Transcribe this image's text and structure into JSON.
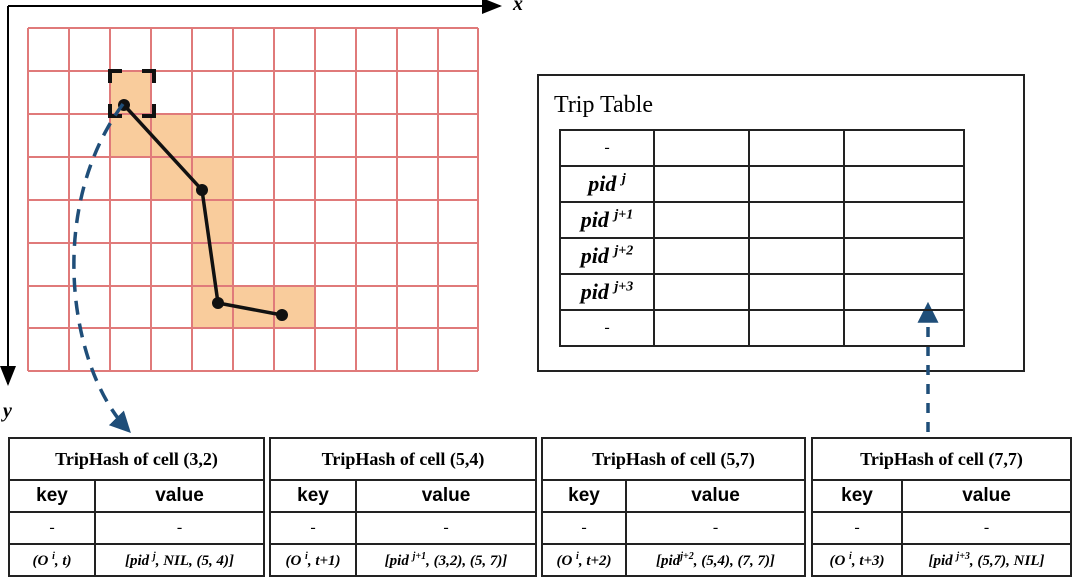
{
  "axes": {
    "x_label": "x",
    "y_label": "y"
  },
  "trip_table": {
    "title": "Trip Table",
    "first_row": "-",
    "rows": [
      {
        "pid": "pid",
        "sup": "j"
      },
      {
        "pid": "pid",
        "sup": "j+1"
      },
      {
        "pid": "pid",
        "sup": "j+2"
      },
      {
        "pid": "pid",
        "sup": "j+3"
      }
    ],
    "last_row": "-"
  },
  "hash_tables": [
    {
      "title": "TripHash of cell (3,2)",
      "key_header": "key",
      "value_header": "value",
      "dash": "-",
      "key_a": "(O",
      "key_sup": "i",
      "key_b": ", t)",
      "val_a": "[pid",
      "val_sup": "j",
      "val_b": ", NIL, (5, 4)]"
    },
    {
      "title": "TripHash of cell (5,4)",
      "key_header": "key",
      "value_header": "value",
      "dash": "-",
      "key_a": "(O",
      "key_sup": "i",
      "key_b": ", t+1)",
      "val_a": "[pid",
      "val_sup": "j+1",
      "val_b": ", (3,2), (5, 7)]"
    },
    {
      "title": "TripHash of cell (5,7)",
      "key_header": "key",
      "value_header": "value",
      "dash": "-",
      "key_a": "(O",
      "key_sup": "i",
      "key_b": ", t+2)",
      "val_a": "[pid",
      "val_sup": "j+2",
      "val_b": ", (5,4), (7, 7)]"
    },
    {
      "title": "TripHash of cell (7,7)",
      "key_header": "key",
      "value_header": "value",
      "dash": "-",
      "key_a": "(O",
      "key_sup": "i",
      "key_b": ", t+3)",
      "val_a": "[pid",
      "val_sup": "j+3",
      "val_b": ", (5,7), NIL]"
    }
  ],
  "colors": {
    "grid_line": "#e07a7a",
    "highlight_fill": "#f9cc9c",
    "arrow_dash": "#1f4e79"
  }
}
